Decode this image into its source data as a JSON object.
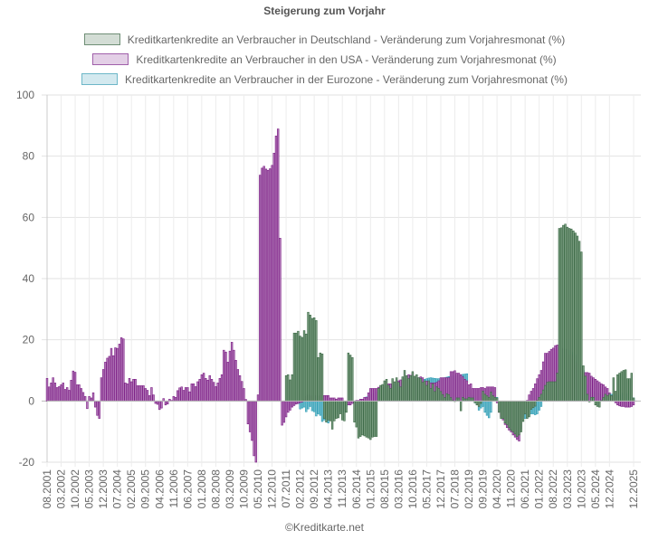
{
  "chart_data": {
    "type": "bar",
    "title": "Steigerung zum Vorjahr",
    "ylim": [
      -20,
      100
    ],
    "yticks": [
      100,
      80,
      60,
      40,
      20,
      0,
      -20
    ],
    "grid": true,
    "legend_position": "top",
    "x_start": "08.2001",
    "x_end": "12.2025",
    "x_tick_labels": [
      "08.2001",
      "03.2002",
      "10.2002",
      "05.2003",
      "12.2003",
      "07.2004",
      "02.2005",
      "09.2005",
      "04.2006",
      "11.2006",
      "06.2007",
      "01.2008",
      "08.2008",
      "03.2009",
      "10.2009",
      "05.2010",
      "12.2010",
      "07.2011",
      "02.2012",
      "09.2012",
      "04.2013",
      "11.2013",
      "06.2014",
      "01.2015",
      "08.2015",
      "03.2016",
      "10.2016",
      "05.2017",
      "12.2017",
      "07.2018",
      "02.2019",
      "09.2019",
      "04.2020",
      "11.2020",
      "06.2021",
      "01.2022",
      "08.2022",
      "03.2023",
      "10.2023",
      "05.2024",
      "12.2024",
      "12.2025"
    ],
    "series": [
      {
        "name": "Kreditkartenkredite an Verbraucher in Deutschland - Veränderung zum Vorjahresmonat (%)",
        "color": "#3d6b47",
        "fill": "#7a9c80",
        "start_index": 119,
        "values": [
          8.3,
          8.6,
          6.9,
          8.6,
          22.2,
          22.2,
          22.8,
          21.2,
          20.8,
          23.0,
          21.9,
          29.0,
          28.1,
          27.0,
          27.2,
          26.3,
          14.2,
          15.7,
          15.4,
          -5.7,
          -6.9,
          -6.2,
          -6.5,
          -9.2,
          -6.5,
          -5.7,
          -5.5,
          -4.2,
          -6.2,
          -6.5,
          -3.7,
          15.7,
          15.0,
          14.2,
          -6.9,
          -8.5,
          -12.1,
          -11.6,
          -11.1,
          -11.4,
          -11.8,
          -12.1,
          -12.6,
          -11.8,
          -11.6,
          -11.6,
          4.1,
          5.1,
          5.4,
          6.6,
          7.1,
          5.1,
          4.1,
          7.3,
          6.3,
          7.6,
          6.1,
          4.6,
          7.9,
          10.0,
          8.3,
          7.3,
          8.3,
          9.6,
          8.1,
          8.6,
          7.6,
          7.3,
          6.1,
          6.6,
          5.1,
          6.6,
          4.1,
          5.6,
          3.1,
          4.6,
          4.1,
          3.1,
          2.1,
          1.1,
          2.4,
          2.1,
          1.1,
          0.2,
          0,
          1.0,
          1.0,
          -3.2,
          1.2,
          0.7,
          0.7,
          1.2,
          1.0,
          1.0,
          -0.6,
          -1.3,
          -1.8,
          -0.8,
          3.2,
          2.2,
          1.7,
          1.2,
          2.9,
          1.7,
          1.2,
          1.0,
          -3.7,
          -5.7,
          -5.7,
          -7.2,
          -7.7,
          -8.7,
          -9.6,
          -10.1,
          -10.8,
          -11.6,
          -11.1,
          -10.1,
          -6.7,
          -4.2,
          -5.7,
          -5.2,
          -2.7,
          -2.2,
          -1.7,
          0.2,
          1.2,
          2.2,
          3.6,
          5.1,
          6.1,
          6.3,
          6.3,
          6.3,
          6.3,
          9.1,
          56.4,
          56.6,
          57.4,
          57.8,
          56.8,
          56.4,
          56.2,
          55.6,
          54.9,
          53.9,
          52.2,
          48.7,
          11.5,
          8.1,
          2.2,
          -0.3,
          1.2,
          1.2,
          -1.3,
          -1.8,
          -2.0,
          0.2,
          1.2,
          2.2,
          1.7,
          2.2,
          1.7,
          7.6,
          3.2,
          8.6,
          9.1,
          9.6,
          10.0,
          10.2,
          7.3,
          7.3,
          9.1,
          1.0
        ]
      },
      {
        "name": "Kreditkartenkredite an Verbraucher in den USA - Veränderung zum Vorjahresmonat (%)",
        "color": "#7d1f86",
        "fill": "#b27ab8",
        "start_index": 0,
        "values": [
          7.4,
          4.6,
          5.9,
          7.6,
          5.9,
          4.4,
          4.7,
          5.3,
          5.9,
          3.8,
          4.4,
          3.5,
          6.8,
          9.8,
          9.4,
          5.3,
          5.3,
          4.1,
          2.8,
          1.5,
          -2.5,
          1.5,
          1.0,
          2.7,
          -2.0,
          -4.7,
          -5.7,
          7.6,
          10.3,
          12.7,
          14.0,
          14.6,
          17.2,
          14.8,
          17.4,
          17.2,
          18.6,
          20.7,
          20.3,
          5.9,
          5.6,
          7.4,
          6.3,
          7.1,
          7.1,
          5.0,
          5.0,
          5.0,
          5.0,
          4.1,
          3.5,
          1.8,
          4.4,
          2.0,
          -0.8,
          -1.1,
          -2.8,
          -2.3,
          0.8,
          -1.3,
          -1.0,
          0.6,
          0.2,
          1.5,
          1.2,
          3.4,
          4.3,
          4.6,
          3.5,
          4.4,
          4.4,
          3.0,
          5.6,
          5.6,
          4.7,
          6.3,
          7.1,
          8.6,
          9.1,
          7.4,
          6.8,
          8.3,
          7.1,
          6.1,
          4.7,
          5.9,
          7.4,
          8.6,
          16.6,
          16.0,
          12.7,
          16.3,
          19.2,
          16.6,
          13.3,
          10.3,
          8.3,
          6.4,
          4.1,
          0.5,
          -7.5,
          -10.1,
          -12.9,
          -17.9,
          -20.0,
          2.0,
          73.8,
          76.1,
          76.7,
          75.8,
          75.4,
          75.9,
          77.0,
          81.0,
          86.6,
          88.9,
          53.2,
          -7.9,
          -7.0,
          -5.2,
          -3.7,
          -3.0,
          -2.0,
          -1.5,
          -1.0,
          -0.8,
          -0.5,
          -0.3,
          0.5,
          1.5,
          2.0,
          1.7,
          1.7,
          1.8,
          1.7,
          1.7,
          1.7,
          1.7,
          1.8,
          1.8,
          1.8,
          1.0,
          1.0,
          1.0,
          0.6,
          1.0,
          1.0,
          1.0,
          0,
          -1.3,
          -1.3,
          -1.3,
          -0.8,
          -0.3,
          0.2,
          0.2,
          0.6,
          0.6,
          1.2,
          1.2,
          2.7,
          4.1,
          4.1,
          4.1,
          4.1,
          4.5,
          4.6,
          4.6,
          4.4,
          5.3,
          5.6,
          5.6,
          5.2,
          6.1,
          6.1,
          6.6,
          6.9,
          7.1,
          7.3,
          7.3,
          8.6,
          8.4,
          9.1,
          7.9,
          7.6,
          7.6,
          7.9,
          7.6,
          6.5,
          6.5,
          6.5,
          5.9,
          5.9,
          5.9,
          6.1,
          6.6,
          7.6,
          7.6,
          7.6,
          7.6,
          7.6,
          9.6,
          9.6,
          9.9,
          9.1,
          9.1,
          8.6,
          7.9,
          7.1,
          6.6,
          5.3,
          5.6,
          4.1,
          4.1,
          4.1,
          4.1,
          4.4,
          4.4,
          4.1,
          4.6,
          4.6,
          4.6,
          4.6,
          4.4,
          -0.6,
          -3.7,
          -5.2,
          -6.2,
          -7.7,
          -8.7,
          -9.5,
          -10.1,
          -11.1,
          -11.8,
          -12.6,
          -13.1,
          -9.0,
          -4.5,
          -2.3,
          0.2,
          2.0,
          3.2,
          4.1,
          5.6,
          7.3,
          8.6,
          10.0,
          12.8,
          15.6,
          15.6,
          16.2,
          16.9,
          17.3,
          18.1,
          18.3,
          17.3,
          17.3,
          16.9,
          16.9,
          16.5,
          15.0,
          15.0,
          13.5,
          12.5,
          11.7,
          11.0,
          11.0,
          9.3,
          9.3,
          9.3,
          9.1,
          8.1,
          7.6,
          7.1,
          6.6,
          6.1,
          5.6,
          5.3,
          4.6,
          4.1,
          2.7,
          1.7,
          0.2,
          -0.6,
          -1.3,
          -1.6,
          -1.8,
          -1.8,
          -2.0,
          -2.0,
          -2.0,
          -1.8,
          -1.3
        ]
      },
      {
        "name": "Kreditkartenkredite an Verbraucher in der Eurozone - Veränderung zum Vorjahresmonat (%)",
        "color": "#2a9cb4",
        "fill": "#7cc2d1",
        "start_index": 119,
        "values": [
          -2,
          -2.3,
          -1.8,
          -1.6,
          -1.3,
          -1.0,
          -0.8,
          -2.6,
          -2.3,
          -2.0,
          -3.5,
          -2.6,
          -1.8,
          -3.2,
          -3.5,
          -4.9,
          -4.2,
          -4.7,
          -6.7,
          -6.2,
          -5.9,
          -7.2,
          -5.2,
          -5.7,
          -5.5,
          -4.2,
          -3.9,
          -3.5,
          -3.5,
          -3.7,
          -1.8,
          -0.8,
          -0.8,
          -0.3,
          -0.3,
          -0.3,
          -0.1,
          0,
          0.5,
          1.0,
          1.3,
          1.6,
          2.0,
          2.3,
          2.6,
          3.0,
          3.3,
          3.6,
          3.9,
          4.2,
          4.5,
          4.8,
          5.0,
          5.2,
          5.4,
          5.6,
          5.8,
          6.0,
          6.2,
          6.3,
          6.4,
          6.5,
          6.6,
          6.7,
          6.8,
          6.9,
          6.9,
          7.0,
          7.0,
          7.1,
          7.3,
          7.5,
          7.6,
          7.5,
          7.4,
          7.3,
          7.3,
          7.4,
          7.5,
          7.6,
          7.8,
          8.0,
          8.1,
          8.2,
          8.3,
          8.4,
          8.5,
          8.6,
          8.7,
          8.8,
          8.9,
          4.1,
          2.4,
          1.7,
          -0.6,
          -1.3,
          -3.0,
          -2.3,
          -1.8,
          -3.7,
          -4.7,
          -5.5,
          -3.7,
          2.2,
          1.2,
          1.2,
          -0.8,
          -1.8,
          -3,
          -3.5,
          -4,
          -4.5,
          -5,
          -5.5,
          -6,
          -6.5,
          -6.8,
          -6.0,
          -5.2,
          -5.7,
          -5.5,
          -4.7,
          -4.2,
          -4.2,
          -4.5,
          -4.2,
          -3.0,
          -1.8,
          0.2,
          1.2,
          2.2,
          3.6,
          5.1,
          6.1,
          7.1,
          7.6,
          12.0,
          15.0,
          16.9,
          16.9,
          16.9,
          16.5,
          16.0,
          15.5,
          15.0,
          13.0,
          12.0,
          11.5,
          10.0,
          6.1,
          5.1,
          4.1,
          3.2,
          3.2,
          3.0,
          2.7,
          2.2,
          2.2,
          2.2,
          2.2,
          1.7,
          2.2,
          2.2,
          2.2,
          2.2,
          1.7,
          2.0,
          2.2,
          2.7,
          2.4,
          2.2,
          1.2,
          1.0,
          1.0
        ]
      }
    ]
  },
  "footer": "©Kreditkarte.net"
}
